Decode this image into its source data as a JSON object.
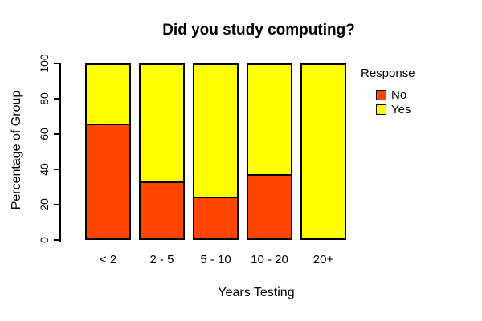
{
  "title": "Did you study computing?",
  "axes": {
    "x_label": "Years Testing",
    "y_label": "Percentage of Group",
    "y_ticks": [
      0,
      20,
      40,
      60,
      80,
      100
    ]
  },
  "legend": {
    "title": "Response",
    "items": [
      {
        "label": "No",
        "color": "#FF4500"
      },
      {
        "label": "Yes",
        "color": "#FFFF00"
      }
    ]
  },
  "chart_data": {
    "type": "bar",
    "stacked": true,
    "title": "Did you study computing?",
    "xlabel": "Years Testing",
    "ylabel": "Percentage of Group",
    "categories": [
      "< 2",
      "2 - 5",
      "5 - 10",
      "10 - 20",
      "20+"
    ],
    "series": [
      {
        "name": "No",
        "color": "#FF4500",
        "values": [
          66,
          33,
          24,
          37,
          0
        ]
      },
      {
        "name": "Yes",
        "color": "#FFFF00",
        "values": [
          34,
          67,
          76,
          63,
          100
        ]
      }
    ],
    "ylim": [
      0,
      100
    ],
    "grid": false,
    "legend_position": "right",
    "bar_border_color": "#000000",
    "background": "#FFFFFF"
  }
}
